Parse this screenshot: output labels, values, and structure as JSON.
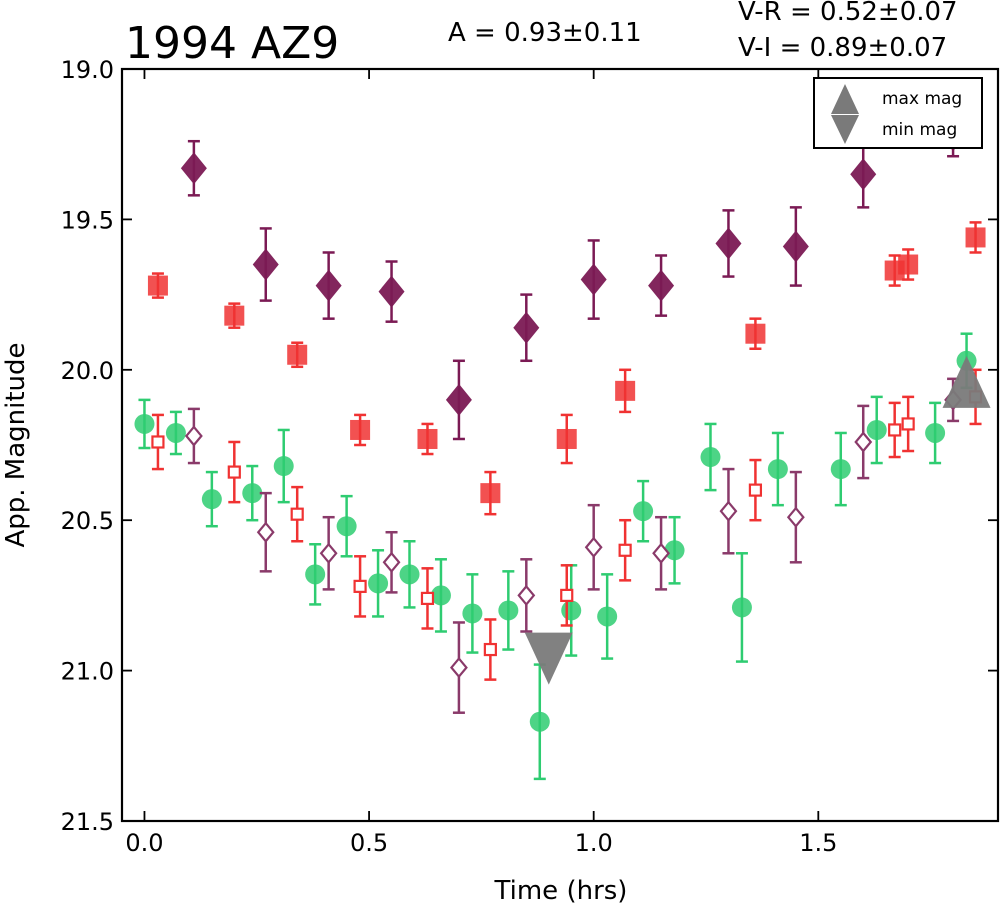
{
  "colors": {
    "green": "#2ecc71",
    "red": "#f03232",
    "purple": "#7b1a54",
    "purple_open": "#8a3a6a",
    "gray": "#7a7a7a"
  },
  "chart_data": {
    "type": "scatter",
    "title": "1994 AZ9",
    "annotations": {
      "amplitude": "A  = 0.93±0.11",
      "v_r": "V-R = 0.52±0.07",
      "v_i": "V-I  = 0.89±0.07"
    },
    "xlabel": "Time (hrs)",
    "ylabel": "App. Magnitude",
    "xlim": [
      -0.05,
      1.9
    ],
    "ylim": [
      21.5,
      19.0
    ],
    "y_inverted": true,
    "x_ticks": [
      0.0,
      0.5,
      1.0,
      1.5
    ],
    "x_tick_labels": [
      "0.0",
      "0.5",
      "1.0",
      "1.5"
    ],
    "y_ticks": [
      19.0,
      19.5,
      20.0,
      20.5,
      21.0,
      21.5
    ],
    "y_tick_labels": [
      "19.0",
      "19.5",
      "20.0",
      "20.5",
      "21.0",
      "21.5"
    ],
    "grid": false,
    "legend": {
      "placement": "top-right",
      "entries": [
        {
          "label": "max mag",
          "marker": "triangle-up",
          "color": "#7a7a7a"
        },
        {
          "label": "min mag",
          "marker": "triangle-down",
          "color": "#7a7a7a"
        }
      ]
    },
    "series": [
      {
        "marker": "circle",
        "filled": true,
        "color": "#2ecc71",
        "points": [
          {
            "x": 0.0,
            "y": 20.18,
            "err": 0.08
          },
          {
            "x": 0.07,
            "y": 20.21,
            "err": 0.07
          },
          {
            "x": 0.15,
            "y": 20.43,
            "err": 0.09
          },
          {
            "x": 0.24,
            "y": 20.41,
            "err": 0.09
          },
          {
            "x": 0.31,
            "y": 20.32,
            "err": 0.12
          },
          {
            "x": 0.38,
            "y": 20.68,
            "err": 0.1
          },
          {
            "x": 0.45,
            "y": 20.52,
            "err": 0.1
          },
          {
            "x": 0.52,
            "y": 20.71,
            "err": 0.11
          },
          {
            "x": 0.59,
            "y": 20.68,
            "err": 0.11
          },
          {
            "x": 0.66,
            "y": 20.75,
            "err": 0.12
          },
          {
            "x": 0.73,
            "y": 20.81,
            "err": 0.13
          },
          {
            "x": 0.81,
            "y": 20.8,
            "err": 0.13
          },
          {
            "x": 0.88,
            "y": 21.17,
            "err": 0.19
          },
          {
            "x": 0.95,
            "y": 20.8,
            "err": 0.15
          },
          {
            "x": 1.03,
            "y": 20.82,
            "err": 0.14
          },
          {
            "x": 1.11,
            "y": 20.47,
            "err": 0.1
          },
          {
            "x": 1.18,
            "y": 20.6,
            "err": 0.11
          },
          {
            "x": 1.26,
            "y": 20.29,
            "err": 0.11
          },
          {
            "x": 1.33,
            "y": 20.79,
            "err": 0.18
          },
          {
            "x": 1.41,
            "y": 20.33,
            "err": 0.12
          },
          {
            "x": 1.55,
            "y": 20.33,
            "err": 0.12
          },
          {
            "x": 1.63,
            "y": 20.2,
            "err": 0.11
          },
          {
            "x": 1.76,
            "y": 20.21,
            "err": 0.1
          },
          {
            "x": 1.83,
            "y": 19.97,
            "err": 0.09
          }
        ]
      },
      {
        "marker": "square",
        "filled": true,
        "color": "#f03232",
        "points": [
          {
            "x": 0.03,
            "y": 19.72,
            "err": 0.04
          },
          {
            "x": 0.2,
            "y": 19.82,
            "err": 0.04
          },
          {
            "x": 0.34,
            "y": 19.95,
            "err": 0.04
          },
          {
            "x": 0.48,
            "y": 20.2,
            "err": 0.05
          },
          {
            "x": 0.63,
            "y": 20.23,
            "err": 0.05
          },
          {
            "x": 0.77,
            "y": 20.41,
            "err": 0.07
          },
          {
            "x": 0.94,
            "y": 20.23,
            "err": 0.08
          },
          {
            "x": 1.07,
            "y": 20.07,
            "err": 0.07
          },
          {
            "x": 1.36,
            "y": 19.88,
            "err": 0.05
          },
          {
            "x": 1.67,
            "y": 19.67,
            "err": 0.05
          },
          {
            "x": 1.7,
            "y": 19.65,
            "err": 0.05
          },
          {
            "x": 1.85,
            "y": 19.56,
            "err": 0.05
          }
        ]
      },
      {
        "marker": "diamond",
        "filled": true,
        "color": "#7b1a54",
        "points": [
          {
            "x": 0.11,
            "y": 19.33,
            "err": 0.09
          },
          {
            "x": 0.27,
            "y": 19.65,
            "err": 0.12
          },
          {
            "x": 0.41,
            "y": 19.72,
            "err": 0.11
          },
          {
            "x": 0.55,
            "y": 19.74,
            "err": 0.1
          },
          {
            "x": 0.7,
            "y": 20.1,
            "err": 0.13
          },
          {
            "x": 0.85,
            "y": 19.86,
            "err": 0.11
          },
          {
            "x": 1.0,
            "y": 19.7,
            "err": 0.13
          },
          {
            "x": 1.15,
            "y": 19.72,
            "err": 0.1
          },
          {
            "x": 1.3,
            "y": 19.58,
            "err": 0.11
          },
          {
            "x": 1.45,
            "y": 19.59,
            "err": 0.13
          },
          {
            "x": 1.6,
            "y": 19.35,
            "err": 0.11
          },
          {
            "x": 1.8,
            "y": 19.22,
            "err": 0.07
          }
        ]
      },
      {
        "marker": "square",
        "filled": false,
        "color": "#f03232",
        "points": [
          {
            "x": 0.03,
            "y": 20.24,
            "err": 0.09
          },
          {
            "x": 0.2,
            "y": 20.34,
            "err": 0.1
          },
          {
            "x": 0.34,
            "y": 20.48,
            "err": 0.09
          },
          {
            "x": 0.48,
            "y": 20.72,
            "err": 0.1
          },
          {
            "x": 0.63,
            "y": 20.76,
            "err": 0.1
          },
          {
            "x": 0.77,
            "y": 20.93,
            "err": 0.1
          },
          {
            "x": 0.94,
            "y": 20.75,
            "err": 0.1
          },
          {
            "x": 1.07,
            "y": 20.6,
            "err": 0.1
          },
          {
            "x": 1.36,
            "y": 20.4,
            "err": 0.1
          },
          {
            "x": 1.67,
            "y": 20.2,
            "err": 0.09
          },
          {
            "x": 1.7,
            "y": 20.18,
            "err": 0.09
          },
          {
            "x": 1.85,
            "y": 20.09,
            "err": 0.09
          }
        ]
      },
      {
        "marker": "diamond",
        "filled": false,
        "color": "#8a3a6a",
        "points": [
          {
            "x": 0.11,
            "y": 20.22,
            "err": 0.09
          },
          {
            "x": 0.27,
            "y": 20.54,
            "err": 0.13
          },
          {
            "x": 0.41,
            "y": 20.61,
            "err": 0.12
          },
          {
            "x": 0.55,
            "y": 20.64,
            "err": 0.1
          },
          {
            "x": 0.7,
            "y": 20.99,
            "err": 0.15
          },
          {
            "x": 0.85,
            "y": 20.75,
            "err": 0.12
          },
          {
            "x": 1.0,
            "y": 20.59,
            "err": 0.14
          },
          {
            "x": 1.15,
            "y": 20.61,
            "err": 0.12
          },
          {
            "x": 1.3,
            "y": 20.47,
            "err": 0.14
          },
          {
            "x": 1.45,
            "y": 20.49,
            "err": 0.15
          },
          {
            "x": 1.6,
            "y": 20.24,
            "err": 0.12
          },
          {
            "x": 1.8,
            "y": 20.1,
            "err": 0.07
          }
        ]
      }
    ],
    "extrema": [
      {
        "type": "max",
        "marker": "triangle-up",
        "x": 1.83,
        "y": 20.04,
        "color": "#7a7a7a"
      },
      {
        "type": "min",
        "marker": "triangle-down",
        "x": 0.9,
        "y": 20.96,
        "color": "#7a7a7a"
      }
    ]
  }
}
